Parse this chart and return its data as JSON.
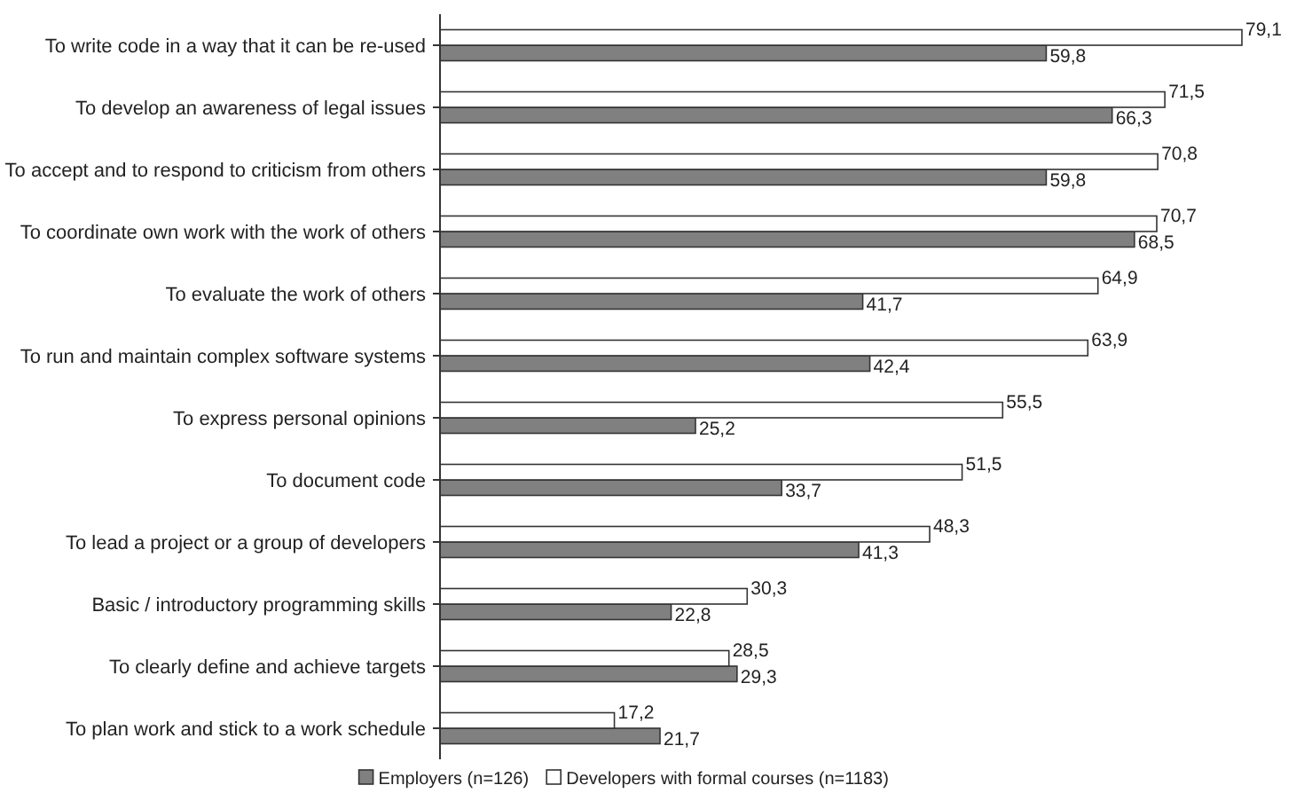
{
  "chart_data": {
    "type": "bar",
    "orientation": "horizontal",
    "categories": [
      "To write code in a way that it can be re-used",
      "To develop an awareness of legal issues",
      "To accept and to respond to criticism from others",
      "To coordinate own work with the work of others",
      "To evaluate the work of others",
      "To run and maintain complex software systems",
      "To express personal opinions",
      "To document code",
      "To lead a project or a group of developers",
      "Basic / introductory programming skills",
      "To clearly define and achieve targets",
      "To plan work and stick to a work schedule"
    ],
    "series": [
      {
        "name": "Employers (n=126)",
        "color": "#808080",
        "values": [
          59.8,
          66.3,
          59.8,
          68.5,
          41.7,
          42.4,
          25.2,
          33.7,
          41.3,
          22.8,
          29.3,
          21.7
        ],
        "value_labels": [
          "59,8",
          "66,3",
          "59,8",
          "68,5",
          "41,7",
          "42,4",
          "25,2",
          "33,7",
          "41,3",
          "22,8",
          "29,3",
          "21,7"
        ]
      },
      {
        "name": "Developers with formal courses (n=1183)",
        "color": "#ffffff",
        "values": [
          79.1,
          71.5,
          70.8,
          70.7,
          64.9,
          63.9,
          55.5,
          51.5,
          48.3,
          30.3,
          28.5,
          17.2
        ],
        "value_labels": [
          "79,1",
          "71,5",
          "70,8",
          "70,7",
          "64,9",
          "63,9",
          "55,5",
          "51,5",
          "48,3",
          "30,3",
          "28,5",
          "17,2"
        ]
      }
    ],
    "legend": "bottom"
  }
}
